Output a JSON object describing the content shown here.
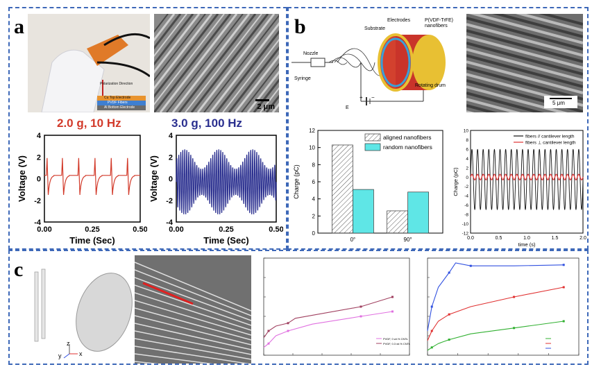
{
  "panels": {
    "a": {
      "letter": "a",
      "photo_labels": [
        "Polarization Direction",
        "Cu Top Electrode",
        "PVDF Fibers",
        "Al Bottom Electrode"
      ],
      "sem_scale": "2 μm",
      "left_title": "2.0 g, 10 Hz",
      "right_title": "3.0 g, 100 Hz",
      "colors": {
        "left": "#d23a2a",
        "right": "#2a2f8f"
      }
    },
    "b": {
      "letter": "b",
      "schematic_labels": {
        "nozzle": "Nozzle",
        "syringe": "Syringe",
        "substrate": "Substrate",
        "electrodes": "Electrodes",
        "fibers": "P(VDF-TrFE) nanofibers",
        "drum": "Rotating drum",
        "e": "E",
        "plus": "+",
        "minus": "−"
      },
      "sem_scale": "5 μm"
    },
    "c": {
      "letter": "c",
      "axes": [
        "y",
        "z",
        "x"
      ]
    }
  },
  "chart_data": [
    {
      "id": "a-left",
      "type": "line",
      "title": "2.0 g, 10 Hz",
      "xlabel": "Time (Sec)",
      "ylabel": "Voltage (V)",
      "xlim": [
        0,
        0.5
      ],
      "ylim": [
        -4,
        4
      ],
      "xticks": [
        "0.00",
        "0.25",
        "0.50"
      ],
      "yticks": [
        "4",
        "2",
        "0",
        "-2",
        "-4"
      ],
      "series": [
        {
          "color": "#d23a2a",
          "pulse_times": [
            0.01,
            0.09,
            0.175,
            0.26,
            0.345,
            0.43
          ],
          "baseline": 0.3,
          "peak": 1.6,
          "trough": -1.8
        }
      ]
    },
    {
      "id": "a-right",
      "type": "line",
      "title": "3.0 g, 100 Hz",
      "xlabel": "Time (Sec)",
      "ylabel": "Voltage (V)",
      "xlim": [
        0,
        0.5
      ],
      "ylim": [
        -4,
        4
      ],
      "xticks": [
        "0.00",
        "0.25",
        "0.50"
      ],
      "yticks": [
        "4",
        "2",
        "0",
        "-2",
        "-4"
      ],
      "series": [
        {
          "color": "#2a2f8f",
          "frequency_hz": 100,
          "amplitude": 3.0
        }
      ]
    },
    {
      "id": "b-bar",
      "type": "bar",
      "categories": [
        "0°",
        "90°"
      ],
      "ylabel": "Charge (pC)",
      "ylim": [
        0,
        12
      ],
      "yticks": [
        "0",
        "2",
        "4",
        "6",
        "8",
        "10",
        "12"
      ],
      "legend": "top-right",
      "series": [
        {
          "name": "aligned nanofibers",
          "values": [
            10.3,
            2.6
          ],
          "color": "#ffffff",
          "pattern": "hatch"
        },
        {
          "name": "random nanofibers",
          "values": [
            5.1,
            4.8
          ],
          "color": "#5fe6e6"
        }
      ]
    },
    {
      "id": "b-line",
      "type": "line",
      "xlabel": "time (s)",
      "ylabel": "Charge (pC)",
      "xlim": [
        0,
        2.0
      ],
      "ylim": [
        -12,
        10
      ],
      "xticks": [
        "0.0",
        "0.5",
        "1.0",
        "1.5",
        "2.0"
      ],
      "yticks": [
        "10",
        "8",
        "6",
        "4",
        "2",
        "0",
        "-2",
        "-4",
        "-6",
        "-8",
        "-10",
        "-12"
      ],
      "legend": "top-right",
      "series": [
        {
          "name": "fibers // cantilever length",
          "color": "#111111",
          "frequency_hz": 10,
          "amplitude": 6.5
        },
        {
          "name": "fibers ⊥ cantilever length",
          "color": "#e03030",
          "frequency_hz": 10,
          "amplitude": 0.6
        }
      ]
    },
    {
      "id": "c-line1",
      "type": "line",
      "xlim": [
        0,
        60
      ],
      "ylim": [
        0,
        100
      ],
      "legend": "bottom-right",
      "series": [
        {
          "name": "PVDF, 0 wt.% CNTs",
          "color": "#e070e0",
          "x": [
            0,
            2,
            5,
            10,
            20,
            40,
            53
          ],
          "y": [
            8,
            12,
            20,
            25,
            32,
            40,
            45
          ]
        },
        {
          "name": "PVDF, 0.3 wt.% CNTs",
          "color": "#a04060",
          "x": [
            0,
            2,
            5,
            10,
            13,
            40,
            53
          ],
          "y": [
            18,
            25,
            30,
            33,
            38,
            50,
            60
          ]
        }
      ]
    },
    {
      "id": "c-line2",
      "type": "line",
      "xlim": [
        0,
        70
      ],
      "ylim": [
        0,
        100
      ],
      "legend": "bottom-right",
      "series": [
        {
          "name": "",
          "color": "#30b030",
          "x": [
            0,
            2,
            5,
            10,
            20,
            40,
            63
          ],
          "y": [
            5,
            8,
            12,
            16,
            22,
            28,
            35
          ]
        },
        {
          "name": "",
          "color": "#e03030",
          "x": [
            0,
            2,
            5,
            10,
            20,
            40,
            63
          ],
          "y": [
            15,
            25,
            35,
            42,
            50,
            60,
            70
          ]
        },
        {
          "name": "",
          "color": "#3050e0",
          "x": [
            0,
            2,
            5,
            10,
            13,
            20,
            40,
            63
          ],
          "y": [
            25,
            50,
            70,
            85,
            95,
            92,
            92,
            93
          ]
        }
      ]
    }
  ]
}
